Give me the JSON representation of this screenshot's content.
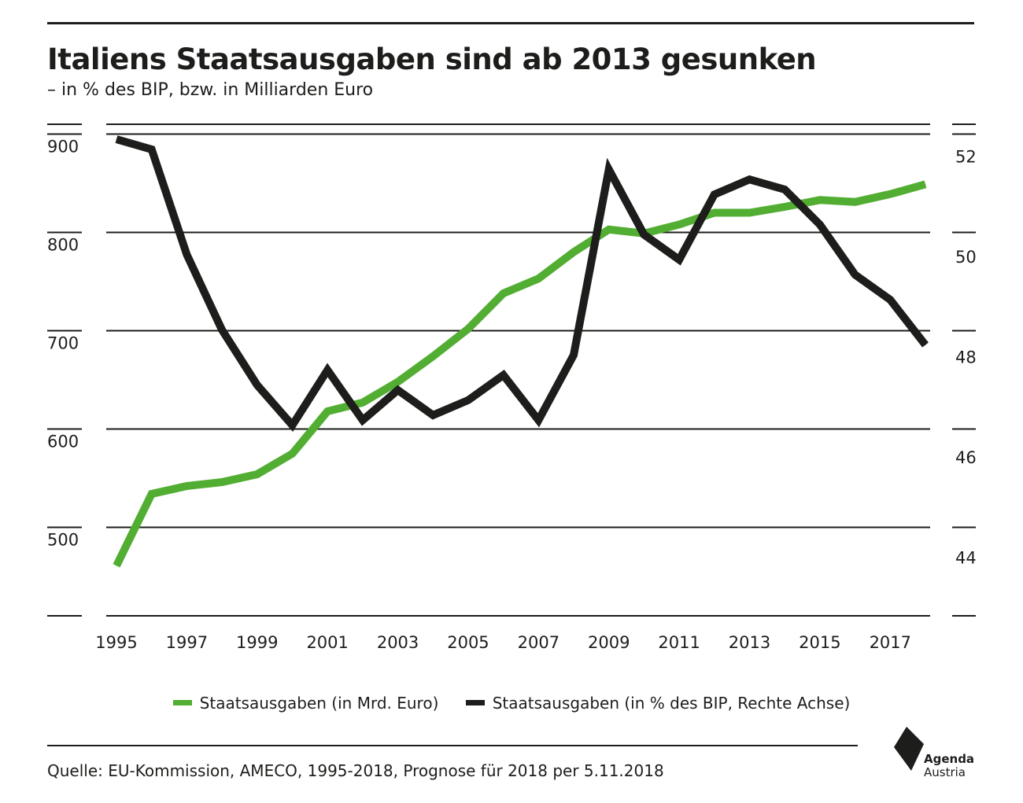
{
  "header": {
    "title": "Italiens Staatsausgaben sind ab 2013 gesunken",
    "subtitle": "– in % des BIP, bzw. in Milliarden Euro"
  },
  "legend": {
    "items": [
      {
        "label": "Staatsausgaben (in Mrd. Euro)",
        "color": "#52ae32"
      },
      {
        "label": "Staatsausgaben (in % des BIP, Rechte Achse)",
        "color": "#1d1d1b"
      }
    ]
  },
  "footer": {
    "source": "Quelle: EU-Kommission, AMECO, 1995-2018, Prognose für 2018 per 5.11.2018"
  },
  "logo": {
    "line1": "Agenda",
    "line2": "Austria"
  },
  "chart_data": {
    "type": "line",
    "title": "Italiens Staatsausgaben sind ab 2013 gesunken",
    "subtitle": "– in % des BIP, bzw. in Milliarden Euro",
    "x": [
      1995,
      1996,
      1997,
      1998,
      1999,
      2000,
      2001,
      2002,
      2003,
      2004,
      2005,
      2006,
      2007,
      2008,
      2009,
      2010,
      2011,
      2012,
      2013,
      2014,
      2015,
      2016,
      2017,
      2018
    ],
    "x_tick_labels": [
      "1995",
      "1997",
      "1999",
      "2001",
      "2003",
      "2005",
      "2007",
      "2009",
      "2011",
      "2013",
      "2015",
      "2017"
    ],
    "y_left_ticks": [
      500,
      600,
      700,
      800,
      900
    ],
    "y_right_ticks": [
      44,
      46,
      48,
      50,
      52
    ],
    "y_left_range": [
      410,
      910
    ],
    "y_right_range": [
      42.6,
      52.4
    ],
    "grid": true,
    "legend_position": "bottom",
    "series": [
      {
        "name": "Staatsausgaben (in Mrd. Euro)",
        "axis": "left",
        "color": "#52ae32",
        "values": [
          461,
          534,
          542,
          546,
          554,
          575,
          618,
          627,
          648,
          674,
          702,
          738,
          753,
          780,
          803,
          799,
          808,
          820,
          820,
          826,
          833,
          831,
          839,
          849
        ]
      },
      {
        "name": "Staatsausgaben (in % des BIP, Rechte Achse)",
        "axis": "right",
        "color": "#1d1d1b",
        "values": [
          52.1,
          51.9,
          49.8,
          48.3,
          47.2,
          46.4,
          47.5,
          46.5,
          47.1,
          46.6,
          46.9,
          47.4,
          46.5,
          47.8,
          51.5,
          50.2,
          49.7,
          51.0,
          51.3,
          51.1,
          50.4,
          49.4,
          48.9,
          48.0
        ]
      }
    ]
  }
}
